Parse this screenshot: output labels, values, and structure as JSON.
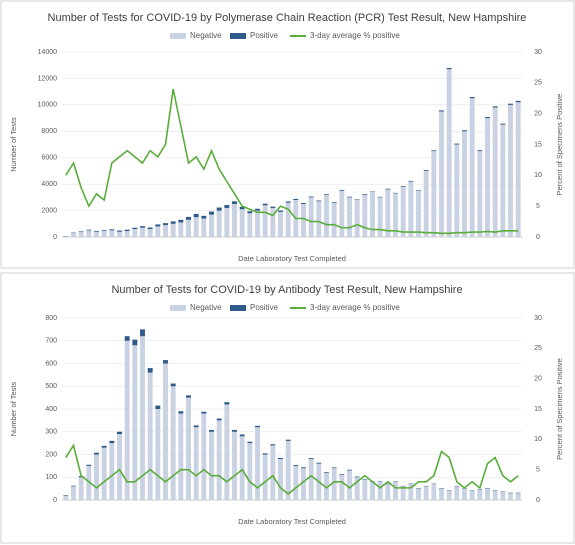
{
  "chart_data": [
    {
      "type": "bar",
      "stacked": true,
      "title": "Number of Tests for COVID-19 by Polymerase Chain Reaction (PCR) Test Result, New Hampshire",
      "y_label": "Number of Tests",
      "y2_label": "Percent of Specimens Positive",
      "x_label": "Date Laboratory Test Completed",
      "categories": [
        null,
        null,
        null,
        null,
        null,
        null,
        null,
        null,
        null,
        null,
        null,
        null,
        null,
        null,
        null,
        null,
        null,
        null,
        null,
        null,
        null,
        null,
        null,
        null,
        null,
        null,
        null,
        null,
        null,
        null,
        null,
        null,
        null,
        null,
        null,
        null,
        null,
        null,
        null,
        null,
        null,
        null,
        null,
        null,
        null,
        null,
        null,
        null,
        null,
        null,
        null,
        null,
        null,
        null,
        null,
        null,
        null,
        null,
        null,
        null
      ],
      "ylim": [
        0,
        14000
      ],
      "yticks": [
        0,
        2000,
        4000,
        6000,
        8000,
        10000,
        12000,
        14000
      ],
      "y2lim": [
        0,
        30
      ],
      "y2ticks": [
        0,
        5,
        10,
        15,
        20,
        25,
        30
      ],
      "series": [
        {
          "name": "Negative",
          "color": "#c9d2e3",
          "values": [
            50,
            300,
            400,
            500,
            400,
            450,
            500,
            400,
            450,
            600,
            700,
            600,
            800,
            900,
            1000,
            1100,
            1300,
            1500,
            1400,
            1700,
            2000,
            2200,
            2500,
            2100,
            1800,
            2000,
            2400,
            2200,
            1900,
            2600,
            2800,
            2500,
            3000,
            2700,
            3200,
            2600,
            3500,
            3000,
            2800,
            3200,
            3400,
            3000,
            3600,
            3300,
            3800,
            4200,
            3500,
            5000,
            6500,
            9500,
            12700,
            7000,
            8000,
            10500,
            6500,
            9000,
            9800,
            8500,
            10000,
            10200
          ]
        },
        {
          "name": "Positive",
          "color": "#2e5a8a",
          "values": [
            20,
            30,
            40,
            50,
            60,
            60,
            80,
            90,
            100,
            100,
            120,
            120,
            150,
            150,
            180,
            200,
            220,
            250,
            200,
            220,
            230,
            220,
            200,
            180,
            150,
            140,
            120,
            100,
            100,
            90,
            80,
            70,
            60,
            60,
            50,
            50,
            60,
            50,
            40,
            50,
            40,
            40,
            50,
            40,
            50,
            50,
            40,
            60,
            60,
            80,
            90,
            70,
            80,
            90,
            70,
            80,
            90,
            80,
            90,
            100
          ]
        },
        {
          "name": "3-day average % positive",
          "color": "#5aad3b",
          "type": "line",
          "axis": "y2",
          "values": [
            10,
            12,
            8,
            5,
            7,
            6,
            12,
            13,
            14,
            13,
            12,
            14,
            13,
            15,
            24,
            18,
            12,
            13,
            11,
            14,
            11,
            9,
            7,
            5,
            4.5,
            4,
            4,
            3.5,
            5,
            4.5,
            3,
            3,
            2.5,
            2.5,
            2,
            2,
            1.5,
            1.5,
            2,
            1.5,
            1.2,
            1.2,
            1,
            1,
            0.8,
            0.8,
            0.8,
            0.7,
            0.7,
            0.6,
            0.6,
            0.7,
            0.7,
            0.8,
            0.8,
            0.9,
            0.8,
            1,
            1,
            1
          ]
        }
      ]
    },
    {
      "type": "bar",
      "stacked": true,
      "title": "Number of Tests for COVID-19 by Antibody Test Result, New Hampshire",
      "y_label": "Number of Tests",
      "y2_label": "Percent of Specimens Positive",
      "x_label": "Date Laboratory Test Completed",
      "categories": [
        null,
        null,
        null,
        null,
        null,
        null,
        null,
        null,
        null,
        null,
        null,
        null,
        null,
        null,
        null,
        null,
        null,
        null,
        null,
        null,
        null,
        null,
        null,
        null,
        null,
        null,
        null,
        null,
        null,
        null,
        null,
        null,
        null,
        null,
        null,
        null,
        null,
        null,
        null,
        null,
        null,
        null,
        null,
        null,
        null,
        null,
        null,
        null,
        null,
        null,
        null,
        null,
        null,
        null,
        null,
        null,
        null,
        null,
        null,
        null
      ],
      "ylim": [
        0,
        800
      ],
      "yticks": [
        0,
        100,
        200,
        300,
        400,
        500,
        600,
        700,
        800
      ],
      "y2lim": [
        0,
        30
      ],
      "y2ticks": [
        0,
        5,
        10,
        15,
        20,
        25,
        30
      ],
      "series": [
        {
          "name": "Negative",
          "color": "#c9d2e3",
          "values": [
            20,
            60,
            100,
            150,
            200,
            230,
            250,
            290,
            700,
            680,
            720,
            560,
            400,
            600,
            500,
            380,
            450,
            320,
            380,
            300,
            350,
            420,
            300,
            280,
            250,
            320,
            200,
            240,
            180,
            260,
            150,
            140,
            180,
            160,
            120,
            140,
            110,
            130,
            100,
            90,
            80,
            80,
            70,
            80,
            60,
            70,
            50,
            60,
            70,
            50,
            40,
            60,
            50,
            40,
            45,
            50,
            40,
            35,
            30,
            30
          ]
        },
        {
          "name": "Positive",
          "color": "#2e5a8a",
          "values": [
            2,
            3,
            5,
            5,
            8,
            8,
            10,
            10,
            20,
            25,
            30,
            20,
            15,
            15,
            12,
            10,
            10,
            8,
            8,
            8,
            8,
            10,
            8,
            8,
            6,
            6,
            5,
            5,
            5,
            5,
            4,
            4,
            4,
            4,
            3,
            3,
            3,
            3,
            3,
            2,
            2,
            2,
            2,
            2,
            2,
            2,
            2,
            2,
            2,
            2,
            2,
            2,
            2,
            2,
            2,
            2,
            2,
            2,
            2,
            2
          ]
        },
        {
          "name": "3-day average % positive",
          "color": "#5aad3b",
          "type": "line",
          "axis": "y2",
          "values": [
            7,
            9,
            4,
            3,
            2,
            3,
            4,
            5,
            3,
            3,
            4,
            5,
            4,
            3,
            4,
            5,
            5,
            4,
            5,
            4,
            4,
            3,
            4,
            5,
            3,
            2,
            3,
            4,
            2,
            1,
            2,
            3,
            4,
            3,
            2,
            3,
            3,
            2,
            3,
            4,
            3,
            2,
            3,
            2,
            2,
            2,
            3,
            3,
            4,
            8,
            7,
            3,
            2,
            3,
            2,
            6,
            7,
            4,
            3,
            4
          ]
        }
      ]
    }
  ]
}
